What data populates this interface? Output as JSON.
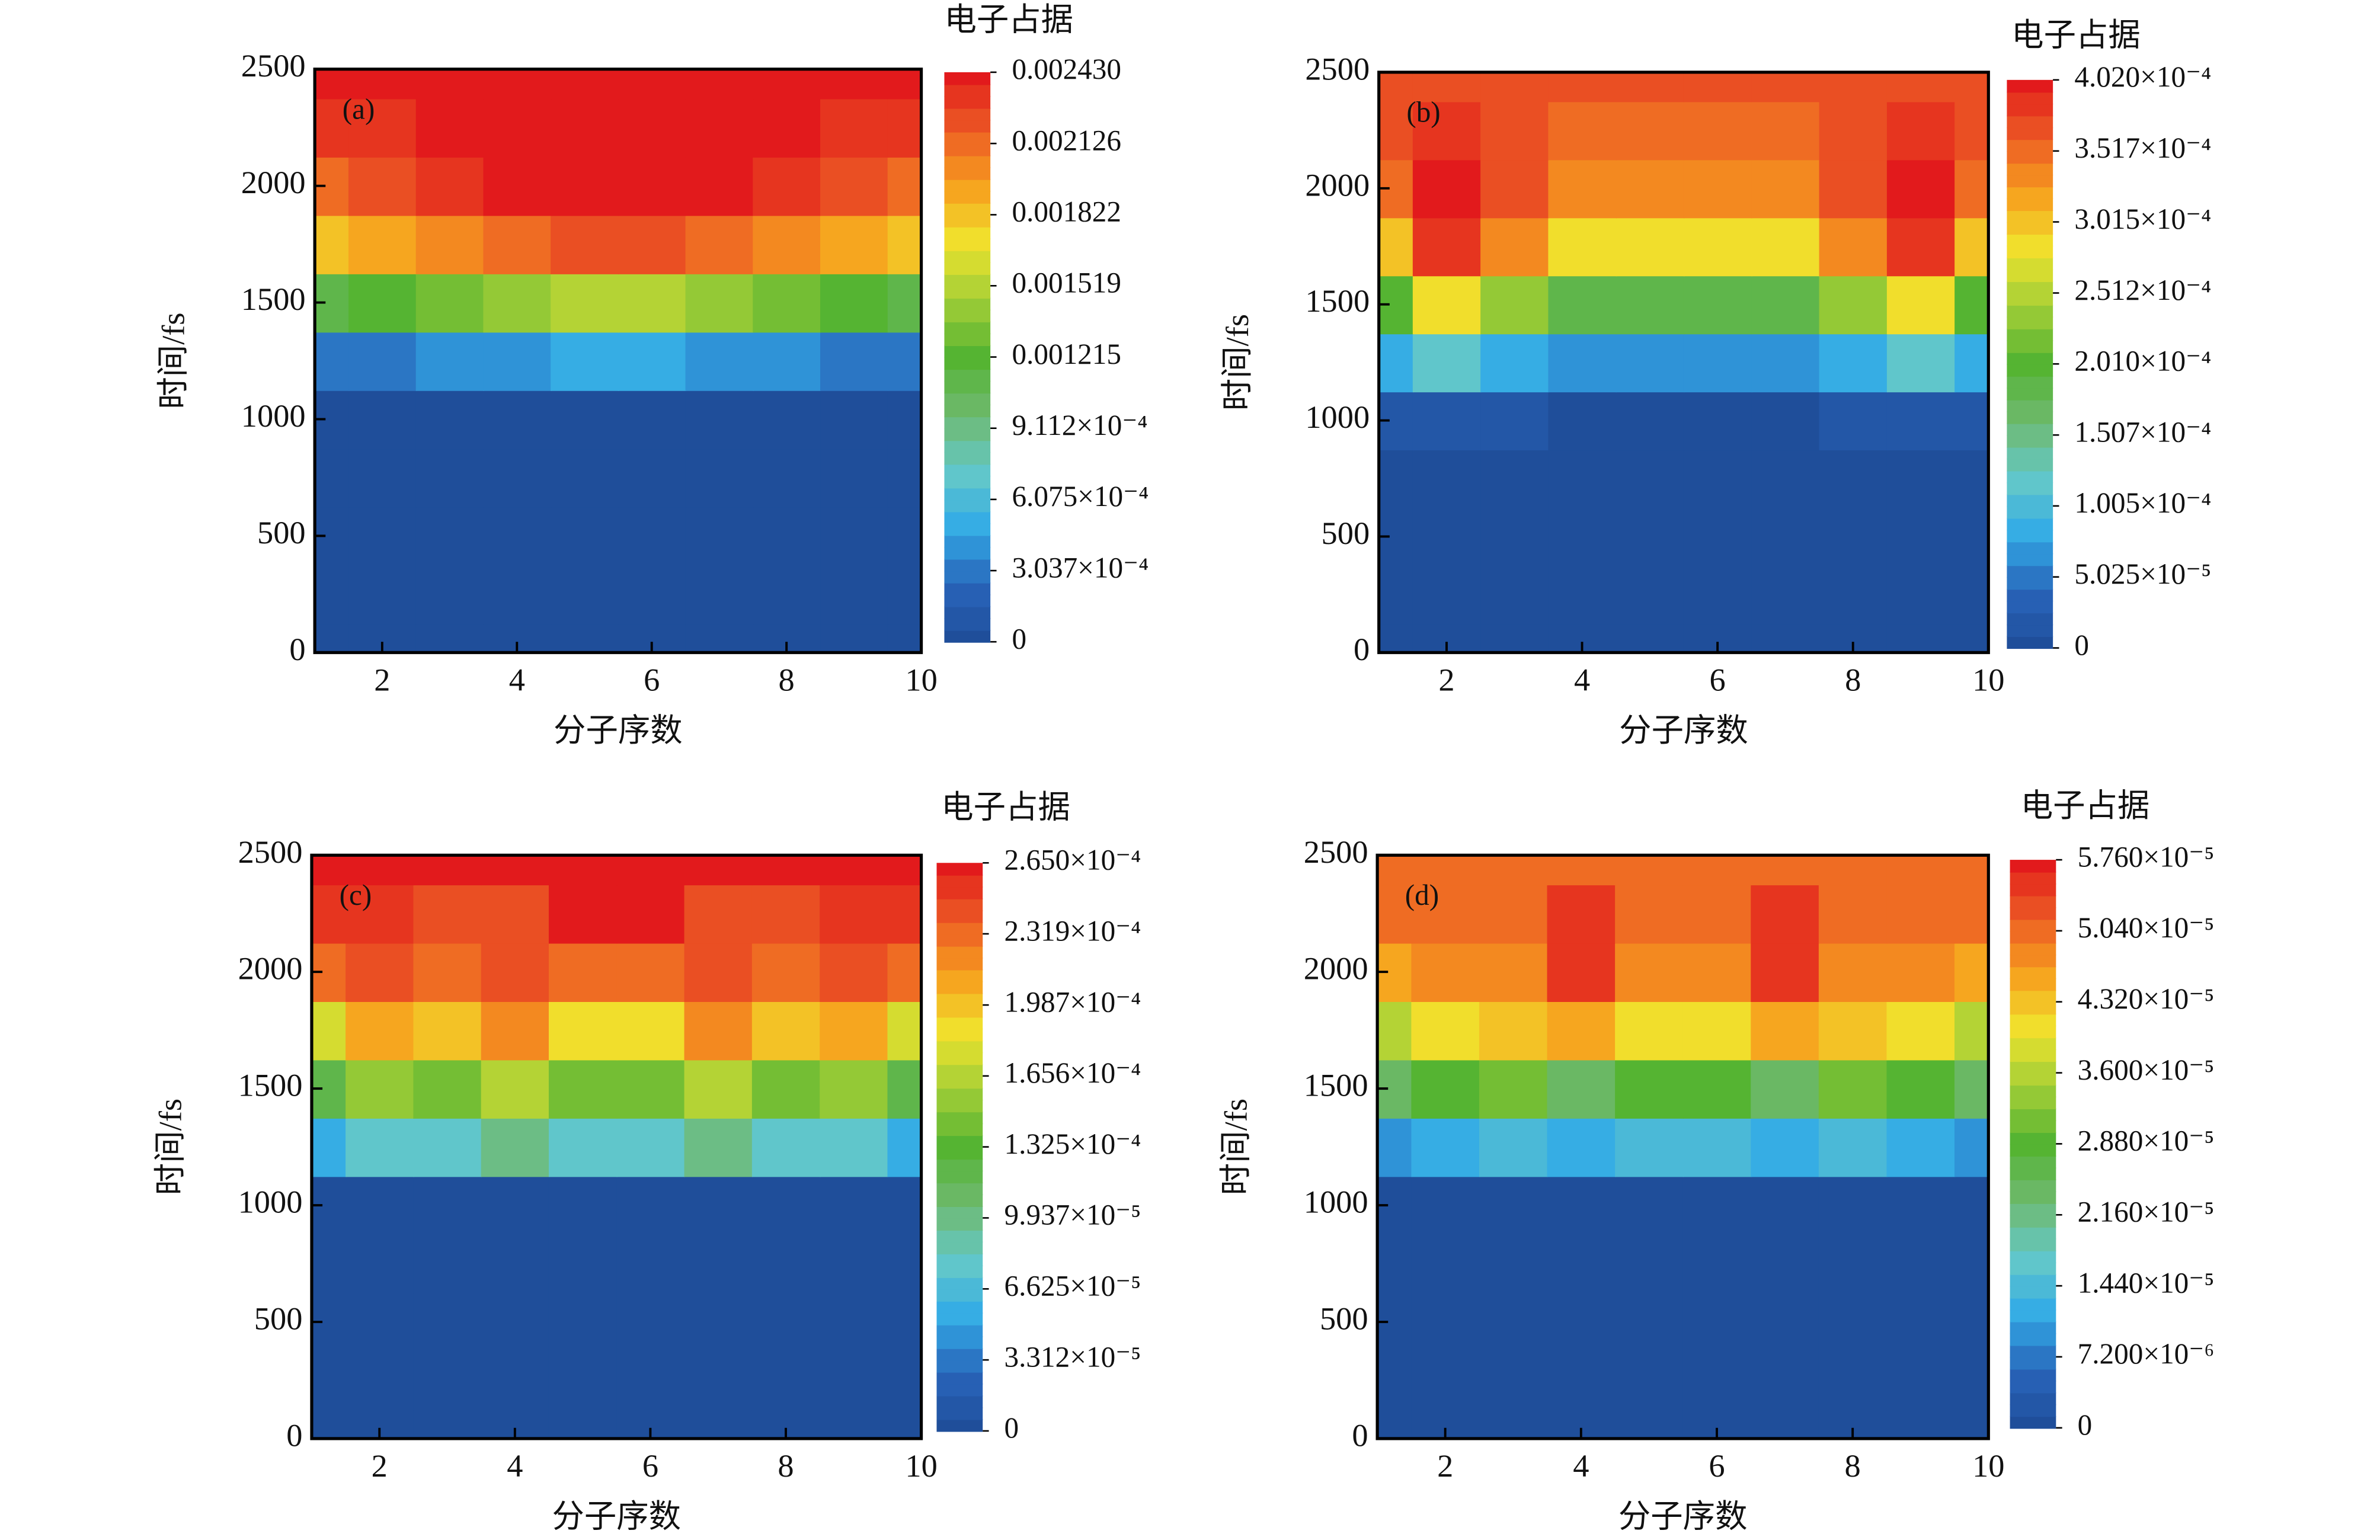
{
  "chart_data": [
    {
      "type": "contour",
      "label": "(a)",
      "xlabel": "分子序数",
      "ylabel": "时间/fs",
      "colorbar_title": "电子占据",
      "x": [
        1,
        2,
        3,
        4,
        5,
        6,
        7,
        8,
        9,
        10
      ],
      "y": [
        0,
        250,
        500,
        750,
        1000,
        1250,
        1500,
        1750,
        2000,
        2250,
        2500
      ],
      "z": [
        [
          0,
          0,
          0,
          0,
          0,
          0,
          0,
          0,
          0,
          0
        ],
        [
          0,
          0,
          0,
          0,
          0,
          0,
          0,
          0,
          0,
          0
        ],
        [
          0,
          0,
          0,
          0,
          0,
          0,
          0,
          0,
          0,
          0
        ],
        [
          0,
          0,
          0,
          0,
          0,
          0,
          0,
          0,
          0,
          0
        ],
        [
          2e-05,
          2e-05,
          2e-05,
          2e-05,
          2e-05,
          2e-05,
          2e-05,
          2e-05,
          2e-05,
          2e-05
        ],
        [
          0.0003,
          0.00035,
          0.0004,
          0.00045,
          0.0005,
          0.0005,
          0.00045,
          0.0004,
          0.00035,
          0.0003
        ],
        [
          0.0011,
          0.0012,
          0.0013,
          0.0014,
          0.0015,
          0.0015,
          0.0014,
          0.0013,
          0.0012,
          0.0011
        ],
        [
          0.0018,
          0.0019,
          0.002,
          0.0021,
          0.0022,
          0.0022,
          0.0021,
          0.002,
          0.0019,
          0.0018
        ],
        [
          0.0021,
          0.0022,
          0.0023,
          0.0024,
          0.0024,
          0.0024,
          0.0024,
          0.0023,
          0.0022,
          0.0021
        ],
        [
          0.0023,
          0.0023,
          0.0024,
          0.0024,
          0.0024,
          0.0024,
          0.0024,
          0.0024,
          0.0023,
          0.0023
        ],
        [
          0.0024,
          0.0024,
          0.0024,
          0.0024,
          0.0024,
          0.0024,
          0.0024,
          0.0024,
          0.0024,
          0.0024
        ]
      ],
      "xlim": [
        1,
        10
      ],
      "xticks": [
        2,
        4,
        6,
        8,
        10
      ],
      "ylim": [
        0,
        2500
      ],
      "yticks": [
        0,
        500,
        1000,
        1500,
        2000,
        2500
      ],
      "colorbar_ticks": [
        0,
        {
          "value": 0.0003037,
          "label": "3.037×10⁻⁴"
        },
        {
          "value": 0.0006075,
          "label": "6.075×10⁻⁴"
        },
        {
          "value": 0.0009112,
          "label": "9.112×10⁻⁴"
        },
        0.001215,
        0.001519,
        0.001822,
        0.002126,
        {
          "value": 0.00243,
          "label": "0.002430"
        }
      ]
    },
    {
      "type": "contour",
      "label": "(b)",
      "xlabel": "分子序数",
      "ylabel": "时间/fs",
      "colorbar_title": "电子占据",
      "x": [
        1,
        2,
        3,
        4,
        5,
        6,
        7,
        8,
        9,
        10
      ],
      "y": [
        0,
        250,
        500,
        750,
        1000,
        1250,
        1500,
        1750,
        2000,
        2250,
        2500
      ],
      "z": [
        [
          0,
          0,
          0,
          0,
          0,
          0,
          0,
          0,
          0,
          0
        ],
        [
          0,
          0,
          0,
          0,
          0,
          0,
          0,
          0,
          0,
          0
        ],
        [
          0,
          0,
          0,
          0,
          0,
          0,
          0,
          0,
          0,
          0
        ],
        [
          0,
          0,
          0,
          0,
          0,
          0,
          0,
          0,
          0,
          0
        ],
        [
          1e-05,
          2e-05,
          1e-05,
          5e-06,
          5e-06,
          5e-06,
          5e-06,
          1e-05,
          2e-05,
          1e-05
        ],
        [
          8e-05,
          0.00012,
          9e-05,
          6e-05,
          6e-05,
          6e-05,
          6e-05,
          9e-05,
          0.00012,
          8e-05
        ],
        [
          0.0002,
          0.00028,
          0.00023,
          0.00018,
          0.00018,
          0.00018,
          0.00018,
          0.00023,
          0.00028,
          0.0002
        ],
        [
          0.0003,
          0.00038,
          0.00033,
          0.00028,
          0.00028,
          0.00028,
          0.00028,
          0.00033,
          0.00038,
          0.0003
        ],
        [
          0.00035,
          0.0004,
          0.00037,
          0.00034,
          0.00034,
          0.00034,
          0.00034,
          0.00037,
          0.0004,
          0.00035
        ],
        [
          0.00037,
          0.00038,
          0.00037,
          0.00036,
          0.00036,
          0.00036,
          0.00036,
          0.00037,
          0.00038,
          0.00037
        ],
        [
          0.00037,
          0.00037,
          0.00037,
          0.00037,
          0.00037,
          0.00037,
          0.00037,
          0.00037,
          0.00037,
          0.00037
        ]
      ],
      "xlim": [
        1,
        10
      ],
      "xticks": [
        2,
        4,
        6,
        8,
        10
      ],
      "ylim": [
        0,
        2500
      ],
      "yticks": [
        0,
        500,
        1000,
        1500,
        2000,
        2500
      ],
      "colorbar_ticks": [
        0,
        {
          "value": 5.025e-05,
          "label": "5.025×10⁻⁵"
        },
        {
          "value": 0.0001005,
          "label": "1.005×10⁻⁴"
        },
        {
          "value": 0.0001507,
          "label": "1.507×10⁻⁴"
        },
        {
          "value": 0.000201,
          "label": "2.010×10⁻⁴"
        },
        {
          "value": 0.0002512,
          "label": "2.512×10⁻⁴"
        },
        {
          "value": 0.0003015,
          "label": "3.015×10⁻⁴"
        },
        {
          "value": 0.0003517,
          "label": "3.517×10⁻⁴"
        },
        {
          "value": 0.000402,
          "label": "4.020×10⁻⁴"
        }
      ]
    },
    {
      "type": "contour",
      "label": "(c)",
      "xlabel": "分子序数",
      "ylabel": "时间/fs",
      "colorbar_title": "电子占据",
      "x": [
        1,
        2,
        3,
        4,
        5,
        6,
        7,
        8,
        9,
        10
      ],
      "y": [
        0,
        250,
        500,
        750,
        1000,
        1250,
        1500,
        1750,
        2000,
        2250,
        2500
      ],
      "z": [
        [
          0,
          0,
          0,
          0,
          0,
          0,
          0,
          0,
          0,
          0
        ],
        [
          0,
          0,
          0,
          0,
          0,
          0,
          0,
          0,
          0,
          0
        ],
        [
          0,
          0,
          0,
          0,
          0,
          0,
          0,
          0,
          0,
          0
        ],
        [
          0,
          0,
          0,
          0,
          0,
          0,
          0,
          0,
          0,
          0
        ],
        [
          5e-06,
          5e-06,
          5e-06,
          5e-06,
          5e-06,
          5e-06,
          5e-06,
          5e-06,
          5e-06,
          5e-06
        ],
        [
          6e-05,
          8e-05,
          8e-05,
          0.0001,
          8e-05,
          8e-05,
          0.0001,
          8e-05,
          8e-05,
          6e-05
        ],
        [
          0.00012,
          0.00015,
          0.00014,
          0.00017,
          0.00014,
          0.00014,
          0.00017,
          0.00014,
          0.00015,
          0.00012
        ],
        [
          0.00018,
          0.00021,
          0.0002,
          0.00022,
          0.00019,
          0.00019,
          0.00022,
          0.0002,
          0.00021,
          0.00018
        ],
        [
          0.00023,
          0.00024,
          0.00023,
          0.00024,
          0.00023,
          0.00023,
          0.00024,
          0.00023,
          0.00024,
          0.00023
        ],
        [
          0.00025,
          0.00025,
          0.000245,
          0.000245,
          0.00026,
          0.00026,
          0.000245,
          0.000245,
          0.00025,
          0.00025
        ],
        [
          0.000265,
          0.000265,
          0.000265,
          0.000265,
          0.000265,
          0.000265,
          0.000265,
          0.000265,
          0.000265,
          0.000265
        ]
      ],
      "xlim": [
        1,
        10
      ],
      "xticks": [
        2,
        4,
        6,
        8,
        10
      ],
      "ylim": [
        0,
        2500
      ],
      "yticks": [
        0,
        500,
        1000,
        1500,
        2000,
        2500
      ],
      "colorbar_ticks": [
        0,
        {
          "value": 3.312e-05,
          "label": "3.312×10⁻⁵"
        },
        {
          "value": 6.625e-05,
          "label": "6.625×10⁻⁵"
        },
        {
          "value": 9.937e-05,
          "label": "9.937×10⁻⁵"
        },
        {
          "value": 0.0001325,
          "label": "1.325×10⁻⁴"
        },
        {
          "value": 0.0001656,
          "label": "1.656×10⁻⁴"
        },
        {
          "value": 0.0001987,
          "label": "1.987×10⁻⁴"
        },
        {
          "value": 0.0002319,
          "label": "2.319×10⁻⁴"
        },
        {
          "value": 0.000265,
          "label": "2.650×10⁻⁴"
        }
      ]
    },
    {
      "type": "contour",
      "label": "(d)",
      "xlabel": "分子序数",
      "ylabel": "时间/fs",
      "colorbar_title": "电子占据",
      "x": [
        1,
        2,
        3,
        4,
        5,
        6,
        7,
        8,
        9,
        10
      ],
      "y": [
        0,
        250,
        500,
        750,
        1000,
        1250,
        1500,
        1750,
        2000,
        2250,
        2500
      ],
      "z": [
        [
          0,
          0,
          0,
          0,
          0,
          0,
          0,
          0,
          0,
          0
        ],
        [
          0,
          0,
          0,
          0,
          0,
          0,
          0,
          0,
          0,
          0
        ],
        [
          0,
          0,
          0,
          0,
          0,
          0,
          0,
          0,
          0,
          0
        ],
        [
          0,
          0,
          0,
          0,
          0,
          0,
          0,
          0,
          0,
          0
        ],
        [
          1e-06,
          1e-06,
          1e-06,
          1e-06,
          1e-06,
          1e-06,
          1e-06,
          1e-06,
          1e-06,
          1e-06
        ],
        [
          1e-05,
          1.3e-05,
          1.5e-05,
          1.1e-05,
          1.4e-05,
          1.4e-05,
          1.1e-05,
          1.5e-05,
          1.3e-05,
          1e-05
        ],
        [
          2.3e-05,
          2.8e-05,
          3e-05,
          2.4e-05,
          2.9e-05,
          2.9e-05,
          2.4e-05,
          3e-05,
          2.8e-05,
          2.3e-05
        ],
        [
          3.6e-05,
          4e-05,
          4.2e-05,
          4.6e-05,
          4.1e-05,
          4.1e-05,
          4.6e-05,
          4.2e-05,
          4e-05,
          3.6e-05
        ],
        [
          4.6e-05,
          4.8e-05,
          4.9e-05,
          5.6e-05,
          4.9e-05,
          4.9e-05,
          5.6e-05,
          4.9e-05,
          4.8e-05,
          4.6e-05
        ],
        [
          5e-05,
          5e-05,
          5e-05,
          5.5e-05,
          5e-05,
          5e-05,
          5.5e-05,
          5e-05,
          5e-05,
          5e-05
        ],
        [
          5e-05,
          5e-05,
          5e-05,
          5e-05,
          5e-05,
          5e-05,
          5e-05,
          5e-05,
          5e-05,
          5e-05
        ]
      ],
      "xlim": [
        1,
        10
      ],
      "xticks": [
        2,
        4,
        6,
        8,
        10
      ],
      "ylim": [
        0,
        2500
      ],
      "yticks": [
        0,
        500,
        1000,
        1500,
        2000,
        2500
      ],
      "colorbar_ticks": [
        0,
        {
          "value": 7.2e-06,
          "label": "7.200×10⁻⁶"
        },
        {
          "value": 1.44e-05,
          "label": "1.440×10⁻⁵"
        },
        {
          "value": 2.16e-05,
          "label": "2.160×10⁻⁵"
        },
        {
          "value": 2.88e-05,
          "label": "2.880×10⁻⁵"
        },
        {
          "value": 3.6e-05,
          "label": "3.600×10⁻⁵"
        },
        {
          "value": 4.32e-05,
          "label": "4.320×10⁻⁵"
        },
        {
          "value": 5.04e-05,
          "label": "5.040×10⁻⁵"
        },
        {
          "value": 5.76e-05,
          "label": "5.760×10⁻⁵"
        }
      ]
    }
  ]
}
